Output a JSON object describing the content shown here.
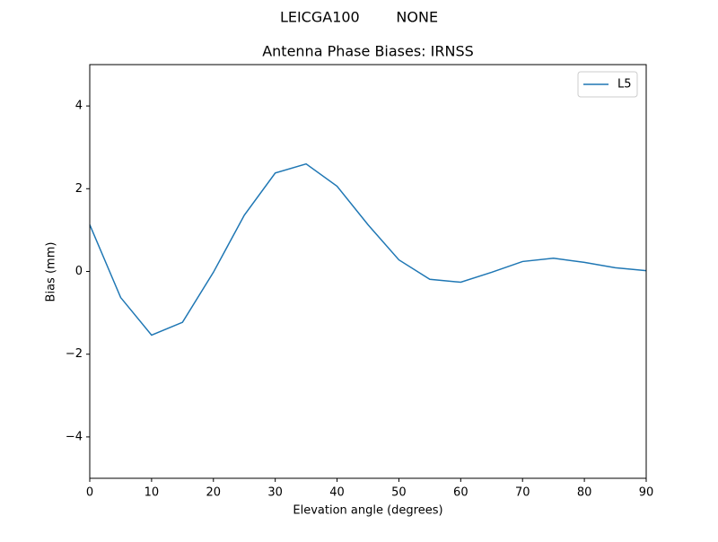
{
  "chart_data": {
    "type": "line",
    "suptitle": "LEICGA100        NONE",
    "title": "Antenna Phase Biases: IRNSS",
    "xlabel": "Elevation angle (degrees)",
    "ylabel": "Bias (mm)",
    "x": [
      0,
      5,
      10,
      15,
      20,
      25,
      30,
      35,
      40,
      45,
      50,
      55,
      60,
      65,
      70,
      75,
      80,
      85,
      90
    ],
    "series": [
      {
        "name": "L5",
        "color": "#1f77b4",
        "values": [
          1.13,
          -0.63,
          -1.54,
          -1.23,
          -0.02,
          1.36,
          2.38,
          2.6,
          2.06,
          1.13,
          0.28,
          -0.19,
          -0.26,
          -0.02,
          0.24,
          0.32,
          0.22,
          0.09,
          0.02
        ]
      }
    ],
    "xlim": [
      0,
      90
    ],
    "ylim": [
      -5,
      5
    ],
    "xticks": [
      0,
      10,
      20,
      30,
      40,
      50,
      60,
      70,
      80,
      90
    ],
    "yticks": [
      {
        "value": -4,
        "label": "−4"
      },
      {
        "value": -2,
        "label": "−2"
      },
      0,
      2,
      4
    ],
    "grid": false,
    "legend": "upper right"
  }
}
